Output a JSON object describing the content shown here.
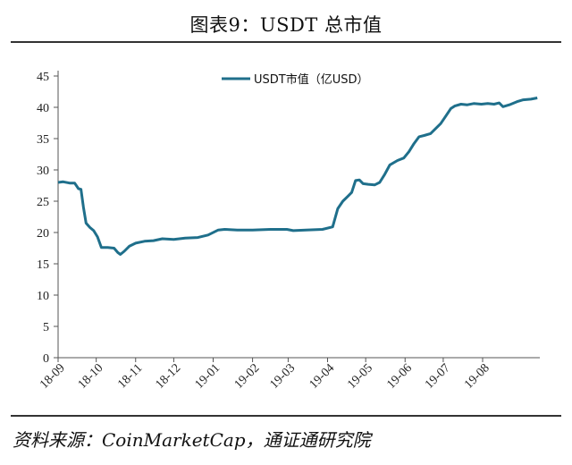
{
  "title": "图表9：USDT 总市值",
  "source": "资料来源：CoinMarketCap，通证通研究院",
  "colors": {
    "line": "#1f6f8b",
    "axis": "#555555"
  },
  "chart_data": {
    "type": "line",
    "title": "图表9：USDT 总市值",
    "legend": {
      "label": "USDT市值（亿USD）",
      "position": "top-center"
    },
    "ylim": [
      0,
      45
    ],
    "yticks": [
      "0",
      "5",
      "10",
      "15",
      "20",
      "25",
      "30",
      "35",
      "40",
      "45"
    ],
    "xlim": [
      "2018-09-01",
      "2019-09-15"
    ],
    "xticks": [
      {
        "date": "2018-09-01",
        "label": "18-09"
      },
      {
        "date": "2018-10-01",
        "label": "18-10"
      },
      {
        "date": "2018-11-01",
        "label": "18-11"
      },
      {
        "date": "2018-12-01",
        "label": "18-12"
      },
      {
        "date": "2019-01-01",
        "label": "19-01"
      },
      {
        "date": "2019-02-01",
        "label": "19-02"
      },
      {
        "date": "2019-03-01",
        "label": "19-03"
      },
      {
        "date": "2019-04-01",
        "label": "19-04"
      },
      {
        "date": "2019-05-01",
        "label": "19-05"
      },
      {
        "date": "2019-06-01",
        "label": "19-06"
      },
      {
        "date": "2019-07-01",
        "label": "19-07"
      },
      {
        "date": "2019-08-01",
        "label": "19-08"
      }
    ],
    "series": [
      {
        "name": "USDT市值（亿USD）",
        "points": [
          [
            "2018-09-01",
            28.0
          ],
          [
            "2018-09-05",
            28.1
          ],
          [
            "2018-09-10",
            27.9
          ],
          [
            "2018-09-14",
            27.9
          ],
          [
            "2018-09-17",
            27.0
          ],
          [
            "2018-09-19",
            26.9
          ],
          [
            "2018-09-21",
            24.0
          ],
          [
            "2018-09-23",
            21.5
          ],
          [
            "2018-09-26",
            20.8
          ],
          [
            "2018-09-29",
            20.3
          ],
          [
            "2018-10-02",
            19.3
          ],
          [
            "2018-10-05",
            17.6
          ],
          [
            "2018-10-10",
            17.6
          ],
          [
            "2018-10-15",
            17.5
          ],
          [
            "2018-10-18",
            16.8
          ],
          [
            "2018-10-20",
            16.5
          ],
          [
            "2018-10-23",
            17.0
          ],
          [
            "2018-10-27",
            17.8
          ],
          [
            "2018-11-01",
            18.3
          ],
          [
            "2018-11-08",
            18.6
          ],
          [
            "2018-11-15",
            18.7
          ],
          [
            "2018-11-22",
            19.0
          ],
          [
            "2018-12-01",
            18.9
          ],
          [
            "2018-12-10",
            19.1
          ],
          [
            "2018-12-20",
            19.2
          ],
          [
            "2018-12-28",
            19.6
          ],
          [
            "2019-01-05",
            20.4
          ],
          [
            "2019-01-10",
            20.5
          ],
          [
            "2019-01-20",
            20.4
          ],
          [
            "2019-02-01",
            20.4
          ],
          [
            "2019-02-15",
            20.5
          ],
          [
            "2019-02-28",
            20.5
          ],
          [
            "2019-03-05",
            20.3
          ],
          [
            "2019-03-15",
            20.4
          ],
          [
            "2019-03-28",
            20.5
          ],
          [
            "2019-04-05",
            20.9
          ],
          [
            "2019-04-09",
            23.8
          ],
          [
            "2019-04-13",
            25.0
          ],
          [
            "2019-04-17",
            25.8
          ],
          [
            "2019-04-20",
            26.4
          ],
          [
            "2019-04-23",
            28.3
          ],
          [
            "2019-04-26",
            28.4
          ],
          [
            "2019-04-29",
            27.8
          ],
          [
            "2019-05-03",
            27.7
          ],
          [
            "2019-05-08",
            27.6
          ],
          [
            "2019-05-12",
            28.0
          ],
          [
            "2019-05-16",
            29.3
          ],
          [
            "2019-05-20",
            30.8
          ],
          [
            "2019-05-26",
            31.5
          ],
          [
            "2019-05-31",
            31.9
          ],
          [
            "2019-06-04",
            32.9
          ],
          [
            "2019-06-08",
            34.2
          ],
          [
            "2019-06-12",
            35.3
          ],
          [
            "2019-06-16",
            35.5
          ],
          [
            "2019-06-21",
            35.8
          ],
          [
            "2019-06-25",
            36.6
          ],
          [
            "2019-06-29",
            37.4
          ],
          [
            "2019-07-03",
            38.6
          ],
          [
            "2019-07-07",
            39.8
          ],
          [
            "2019-07-10",
            40.2
          ],
          [
            "2019-07-15",
            40.5
          ],
          [
            "2019-07-20",
            40.4
          ],
          [
            "2019-07-25",
            40.6
          ],
          [
            "2019-07-31",
            40.5
          ],
          [
            "2019-08-05",
            40.6
          ],
          [
            "2019-08-10",
            40.5
          ],
          [
            "2019-08-14",
            40.7
          ],
          [
            "2019-08-17",
            40.1
          ],
          [
            "2019-08-22",
            40.4
          ],
          [
            "2019-08-28",
            40.9
          ],
          [
            "2019-09-02",
            41.2
          ],
          [
            "2019-09-08",
            41.3
          ],
          [
            "2019-09-13",
            41.5
          ]
        ]
      }
    ]
  }
}
